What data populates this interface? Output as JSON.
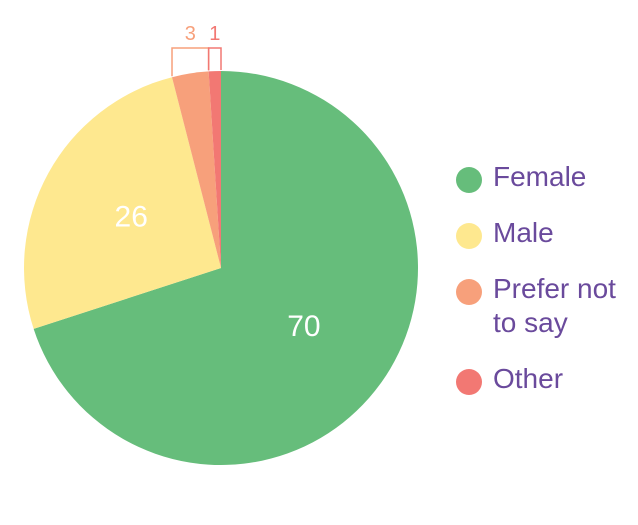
{
  "chart_data": {
    "type": "pie",
    "categories": [
      "Female",
      "Male",
      "Prefer not to say",
      "Other"
    ],
    "values": [
      70,
      26,
      3,
      1
    ],
    "data_labels": [
      "70",
      "26",
      "3",
      "1"
    ],
    "colors": [
      "#66bd7b",
      "#fee88f",
      "#f7a07b",
      "#f27873"
    ],
    "legend_position": "right",
    "start": "12 o'clock",
    "direction": "clockwise"
  },
  "legend": {
    "items": [
      {
        "label": "Female",
        "color": "#66bd7b"
      },
      {
        "label": "Male",
        "color": "#fee88f"
      },
      {
        "label": "Prefer not to say",
        "color": "#f7a07b"
      },
      {
        "label": "Other",
        "color": "#f27873"
      }
    ]
  },
  "colors": {
    "label_text_inside": "#ffffff",
    "legend_text": "#6a4a9c"
  }
}
